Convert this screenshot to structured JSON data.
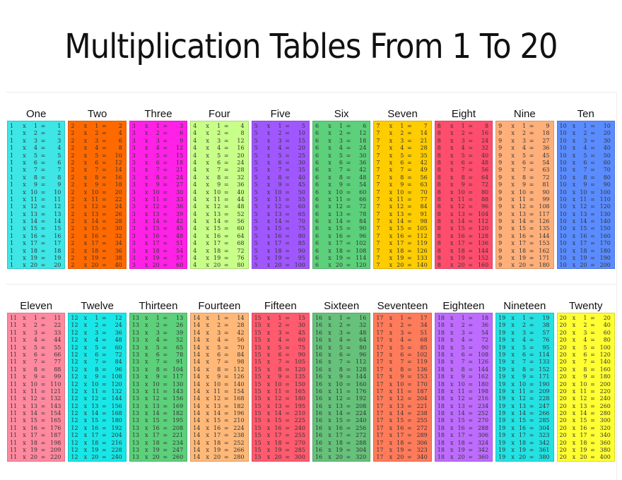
{
  "title": "Multiplication Tables From 1 To 20",
  "multiplier_count": 20,
  "symbols": {
    "times": "x",
    "equals": "="
  },
  "rows": [
    [
      {
        "label": "One",
        "n": 1,
        "color": "#3ee6e6"
      },
      {
        "label": "Two",
        "n": 2,
        "color": "#ff6a00"
      },
      {
        "label": "Three",
        "n": 3,
        "color": "#ff22e6"
      },
      {
        "label": "Four",
        "n": 4,
        "color": "#c8ff88"
      },
      {
        "label": "Five",
        "n": 5,
        "color": "#a157ff"
      },
      {
        "label": "Six",
        "n": 6,
        "color": "#5cd07a"
      },
      {
        "label": "Seven",
        "n": 7,
        "color": "#ffcc00"
      },
      {
        "label": "Eight",
        "n": 8,
        "color": "#ff4d6d"
      },
      {
        "label": "Nine",
        "n": 9,
        "color": "#ffb07a"
      },
      {
        "label": "Ten",
        "n": 10,
        "color": "#5b8cff"
      }
    ],
    [
      {
        "label": "Eleven",
        "n": 11,
        "color": "#ff8aa0"
      },
      {
        "label": "Twelve",
        "n": 12,
        "color": "#19e6e6"
      },
      {
        "label": "Thirteen",
        "n": 13,
        "color": "#5cd07a"
      },
      {
        "label": "Fourteen",
        "n": 14,
        "color": "#ffb878"
      },
      {
        "label": "Fifteen",
        "n": 15,
        "color": "#ff5a6e"
      },
      {
        "label": "Sixteen",
        "n": 16,
        "color": "#66c27a"
      },
      {
        "label": "Seventeen",
        "n": 17,
        "color": "#ff7b5a"
      },
      {
        "label": "Eighteen",
        "n": 18,
        "color": "#bd6cff"
      },
      {
        "label": "Nineteen",
        "n": 19,
        "color": "#25e1e1"
      },
      {
        "label": "Twenty",
        "n": 20,
        "color": "#ffff33"
      }
    ]
  ]
}
